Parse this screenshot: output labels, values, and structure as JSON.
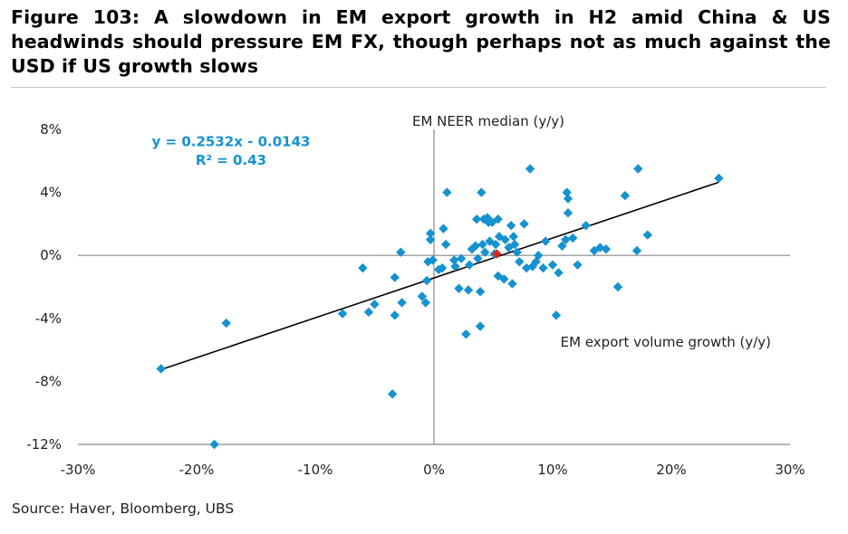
{
  "figure": {
    "title": "Figure 103: A slowdown in EM export growth in H2 amid China & US headwinds should pressure EM FX, though perhaps not as much against the USD if US growth slows",
    "source": "Source: Haver, Bloomberg, UBS"
  },
  "chart_data": {
    "type": "scatter",
    "title": "",
    "xlabel": "EM export volume growth (y/y)",
    "ylabel": "EM NEER median (y/y)",
    "xlim": [
      -0.3,
      0.3
    ],
    "ylim": [
      -0.12,
      0.08
    ],
    "x_ticks": [
      -0.3,
      -0.2,
      -0.1,
      0.0,
      0.1,
      0.2,
      0.3
    ],
    "x_tick_labels": [
      "-30%",
      "-20%",
      "-10%",
      "0%",
      "10%",
      "20%",
      "30%"
    ],
    "y_ticks": [
      0.08,
      0.04,
      0.0,
      -0.04,
      -0.08,
      -0.12
    ],
    "y_tick_labels": [
      "8%",
      "4%",
      "0%",
      "-4%",
      "-8%",
      "-12%"
    ],
    "grid": false,
    "colors": {
      "points": "#1592cf",
      "highlight": "#d9251c",
      "trendline": "#000000",
      "axes": "#888888"
    },
    "trendline": {
      "slope": 0.2532,
      "intercept": -0.0143,
      "x_range": [
        -0.23,
        0.24
      ],
      "equation_label": "y = 0.2532x - 0.0143",
      "r2_label": "R² = 0.43"
    },
    "highlight_point": {
      "x": 0.053,
      "y": 0.001
    },
    "series": [
      {
        "points": [
          [
            -0.23,
            -0.072
          ],
          [
            -0.175,
            -0.043
          ],
          [
            -0.185,
            -0.12
          ],
          [
            -0.077,
            -0.037
          ],
          [
            -0.06,
            -0.008
          ],
          [
            -0.055,
            -0.036
          ],
          [
            -0.05,
            -0.031
          ],
          [
            -0.035,
            -0.088
          ],
          [
            -0.033,
            -0.014
          ],
          [
            -0.033,
            -0.038
          ],
          [
            -0.028,
            0.002
          ],
          [
            -0.027,
            -0.03
          ],
          [
            -0.01,
            -0.026
          ],
          [
            -0.007,
            -0.03
          ],
          [
            -0.006,
            -0.016
          ],
          [
            -0.005,
            -0.004
          ],
          [
            -0.003,
            0.014
          ],
          [
            -0.003,
            0.01
          ],
          [
            -0.001,
            -0.003
          ],
          [
            0.004,
            -0.009
          ],
          [
            0.007,
            -0.008
          ],
          [
            0.008,
            0.017
          ],
          [
            0.01,
            0.007
          ],
          [
            0.011,
            0.04
          ],
          [
            0.017,
            -0.003
          ],
          [
            0.018,
            -0.007
          ],
          [
            0.021,
            -0.021
          ],
          [
            0.023,
            -0.002
          ],
          [
            0.027,
            -0.05
          ],
          [
            0.029,
            -0.022
          ],
          [
            0.03,
            -0.006
          ],
          [
            0.032,
            0.004
          ],
          [
            0.035,
            0.006
          ],
          [
            0.036,
            0.023
          ],
          [
            0.037,
            -0.002
          ],
          [
            0.039,
            -0.045
          ],
          [
            0.039,
            -0.023
          ],
          [
            0.04,
            0.04
          ],
          [
            0.041,
            0.007
          ],
          [
            0.042,
            0.023
          ],
          [
            0.043,
            0.002
          ],
          [
            0.045,
            0.024
          ],
          [
            0.046,
            0.021
          ],
          [
            0.047,
            0.009
          ],
          [
            0.049,
            0.021
          ],
          [
            0.051,
            0.001
          ],
          [
            0.052,
            0.007
          ],
          [
            0.054,
            -0.013
          ],
          [
            0.054,
            0.023
          ],
          [
            0.055,
            0.012
          ],
          [
            0.059,
            -0.015
          ],
          [
            0.06,
            0.01
          ],
          [
            0.063,
            0.005
          ],
          [
            0.065,
            0.019
          ],
          [
            0.066,
            -0.018
          ],
          [
            0.067,
            0.012
          ],
          [
            0.068,
            0.007
          ],
          [
            0.07,
            0.002
          ],
          [
            0.072,
            -0.004
          ],
          [
            0.076,
            0.02
          ],
          [
            0.078,
            -0.008
          ],
          [
            0.081,
            0.055
          ],
          [
            0.083,
            -0.007
          ],
          [
            0.086,
            -0.004
          ],
          [
            0.088,
            0.0
          ],
          [
            0.092,
            -0.008
          ],
          [
            0.094,
            0.009
          ],
          [
            0.1,
            -0.006
          ],
          [
            0.103,
            -0.038
          ],
          [
            0.105,
            -0.011
          ],
          [
            0.108,
            0.006
          ],
          [
            0.111,
            0.01
          ],
          [
            0.112,
            0.04
          ],
          [
            0.113,
            0.036
          ],
          [
            0.113,
            0.027
          ],
          [
            0.117,
            0.011
          ],
          [
            0.121,
            -0.006
          ],
          [
            0.128,
            0.019
          ],
          [
            0.135,
            0.003
          ],
          [
            0.14,
            0.005
          ],
          [
            0.145,
            0.004
          ],
          [
            0.155,
            -0.02
          ],
          [
            0.161,
            0.038
          ],
          [
            0.171,
            0.003
          ],
          [
            0.172,
            0.055
          ],
          [
            0.18,
            0.013
          ],
          [
            0.24,
            0.049
          ]
        ]
      }
    ]
  }
}
